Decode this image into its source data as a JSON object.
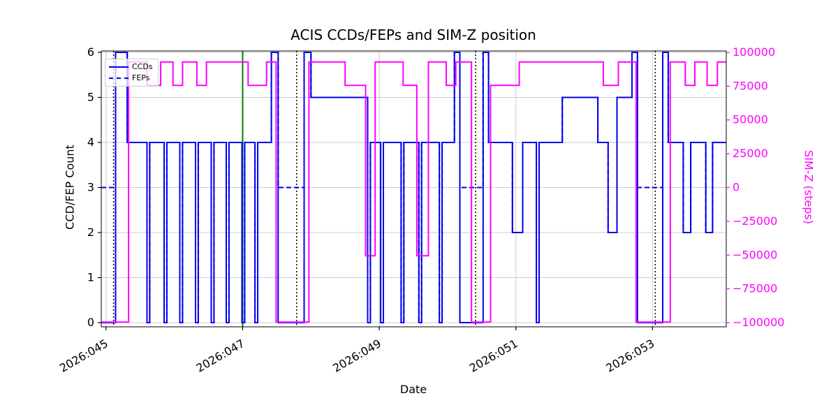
{
  "title": "ACIS CCDs/FEPs and SIM-Z position",
  "xlabel": "Date",
  "ylabel_left": "CCD/FEP Count",
  "ylabel_right": "SIM-Z (steps)",
  "legend": {
    "ccds": "CCDs",
    "feps": "FEPs"
  },
  "colors": {
    "ccds": "#0000ee",
    "feps": "#0000ee",
    "simz": "#ff00ff",
    "green_vline": "#008000",
    "dotted_vline": "#000000",
    "grid": "#cccccc",
    "axis": "#000000"
  },
  "chart_data": {
    "type": "line",
    "subtype": "step-post",
    "title": "ACIS CCDs/FEPs and SIM-Z position",
    "xlabel": "Date",
    "ylabel_left": "CCD/FEP Count",
    "ylabel_right": "SIM-Z (steps)",
    "x_unit": "2026 day-of-year",
    "grid": true,
    "legend_position": "upper-left",
    "xlim": [
      44.93,
      54.08
    ],
    "ylim_left": [
      -0.093,
      6.031
    ],
    "ylim_right": [
      -103100,
      101033
    ],
    "xticks": [
      {
        "v": 45,
        "label": "2026:045"
      },
      {
        "v": 47,
        "label": "2026:047"
      },
      {
        "v": 49,
        "label": "2026:049"
      },
      {
        "v": 51,
        "label": "2026:051"
      },
      {
        "v": 53,
        "label": "2026:053"
      }
    ],
    "yticks_left": [
      {
        "v": 0,
        "label": "0"
      },
      {
        "v": 1,
        "label": "1"
      },
      {
        "v": 2,
        "label": "2"
      },
      {
        "v": 3,
        "label": "3"
      },
      {
        "v": 4,
        "label": "4"
      },
      {
        "v": 5,
        "label": "5"
      },
      {
        "v": 6,
        "label": "6"
      }
    ],
    "yticks_right": [
      {
        "v": 100000,
        "label": "100000"
      },
      {
        "v": 75000,
        "label": "75000"
      },
      {
        "v": 50000,
        "label": "50000"
      },
      {
        "v": 25000,
        "label": "25000"
      },
      {
        "v": 0,
        "label": "0"
      },
      {
        "v": -25000,
        "label": "−25000"
      },
      {
        "v": -50000,
        "label": "−50000"
      },
      {
        "v": -75000,
        "label": "−75000"
      },
      {
        "v": -100000,
        "label": "−100000"
      }
    ],
    "vlines_dotted": [
      45.11,
      47.79,
      50.41,
      53.04
    ],
    "vline_green": 47.0,
    "series": [
      {
        "name": "CCDs",
        "axis": "left",
        "style": "solid",
        "color": "#0000ee",
        "points": [
          [
            44.93,
            0
          ],
          [
            45.14,
            6
          ],
          [
            45.31,
            4
          ],
          [
            45.6,
            0
          ],
          [
            45.64,
            4
          ],
          [
            45.85,
            0
          ],
          [
            45.89,
            4
          ],
          [
            46.08,
            0
          ],
          [
            46.12,
            4
          ],
          [
            46.31,
            0
          ],
          [
            46.35,
            4
          ],
          [
            46.54,
            0
          ],
          [
            46.58,
            4
          ],
          [
            46.76,
            0
          ],
          [
            46.8,
            4
          ],
          [
            46.99,
            0
          ],
          [
            47.03,
            4
          ],
          [
            47.18,
            0
          ],
          [
            47.22,
            4
          ],
          [
            47.42,
            6
          ],
          [
            47.52,
            0
          ],
          [
            47.9,
            6
          ],
          [
            48.0,
            5
          ],
          [
            48.83,
            0
          ],
          [
            48.87,
            4
          ],
          [
            49.02,
            0
          ],
          [
            49.06,
            4
          ],
          [
            49.32,
            0
          ],
          [
            49.36,
            4
          ],
          [
            49.58,
            0
          ],
          [
            49.62,
            4
          ],
          [
            49.88,
            0
          ],
          [
            49.92,
            4
          ],
          [
            50.1,
            6
          ],
          [
            50.18,
            0
          ],
          [
            50.52,
            6
          ],
          [
            50.6,
            4
          ],
          [
            50.95,
            2
          ],
          [
            51.1,
            4
          ],
          [
            51.3,
            0
          ],
          [
            51.34,
            4
          ],
          [
            51.68,
            5
          ],
          [
            52.2,
            4
          ],
          [
            52.35,
            2
          ],
          [
            52.48,
            5
          ],
          [
            52.7,
            6
          ],
          [
            52.78,
            0
          ],
          [
            53.15,
            6
          ],
          [
            53.23,
            4
          ],
          [
            53.45,
            2
          ],
          [
            53.56,
            4
          ],
          [
            53.78,
            2
          ],
          [
            53.88,
            4
          ],
          [
            54.08,
            4
          ]
        ]
      },
      {
        "name": "FEPs",
        "axis": "left",
        "style": "dashed",
        "color": "#0000ee",
        "points": [
          [
            44.93,
            3
          ],
          [
            45.14,
            6
          ],
          [
            45.31,
            4
          ],
          [
            45.6,
            0
          ],
          [
            45.64,
            4
          ],
          [
            45.85,
            0
          ],
          [
            45.89,
            4
          ],
          [
            46.08,
            0
          ],
          [
            46.12,
            4
          ],
          [
            46.31,
            0
          ],
          [
            46.35,
            4
          ],
          [
            46.54,
            0
          ],
          [
            46.58,
            4
          ],
          [
            46.76,
            0
          ],
          [
            46.8,
            4
          ],
          [
            46.99,
            0
          ],
          [
            47.03,
            4
          ],
          [
            47.18,
            0
          ],
          [
            47.22,
            4
          ],
          [
            47.42,
            6
          ],
          [
            47.52,
            3
          ],
          [
            47.9,
            6
          ],
          [
            48.0,
            5
          ],
          [
            48.83,
            0
          ],
          [
            48.87,
            4
          ],
          [
            49.02,
            0
          ],
          [
            49.06,
            4
          ],
          [
            49.32,
            0
          ],
          [
            49.36,
            4
          ],
          [
            49.58,
            0
          ],
          [
            49.62,
            4
          ],
          [
            49.88,
            0
          ],
          [
            49.92,
            4
          ],
          [
            50.1,
            6
          ],
          [
            50.18,
            3
          ],
          [
            50.52,
            6
          ],
          [
            50.6,
            4
          ],
          [
            50.95,
            2
          ],
          [
            51.1,
            4
          ],
          [
            51.3,
            0
          ],
          [
            51.34,
            4
          ],
          [
            51.68,
            5
          ],
          [
            52.2,
            4
          ],
          [
            52.35,
            2
          ],
          [
            52.48,
            5
          ],
          [
            52.7,
            6
          ],
          [
            52.78,
            3
          ],
          [
            53.15,
            6
          ],
          [
            53.23,
            4
          ],
          [
            53.45,
            2
          ],
          [
            53.56,
            4
          ],
          [
            53.78,
            2
          ],
          [
            53.88,
            4
          ],
          [
            54.08,
            4
          ]
        ]
      },
      {
        "name": "SIM-Z",
        "axis": "right",
        "style": "solid",
        "color": "#ff00ff",
        "points": [
          [
            44.93,
            -99612
          ],
          [
            45.33,
            92904
          ],
          [
            45.6,
            75624
          ],
          [
            45.8,
            92904
          ],
          [
            45.98,
            75624
          ],
          [
            46.12,
            92904
          ],
          [
            46.33,
            75624
          ],
          [
            46.47,
            92904
          ],
          [
            47.08,
            75624
          ],
          [
            47.35,
            92904
          ],
          [
            47.49,
            -99612
          ],
          [
            47.97,
            92904
          ],
          [
            48.5,
            75624
          ],
          [
            48.8,
            -50505
          ],
          [
            48.94,
            92904
          ],
          [
            49.35,
            75624
          ],
          [
            49.55,
            -50505
          ],
          [
            49.72,
            92904
          ],
          [
            49.98,
            75624
          ],
          [
            50.12,
            92904
          ],
          [
            50.35,
            -99612
          ],
          [
            50.63,
            75624
          ],
          [
            51.05,
            92904
          ],
          [
            52.28,
            75624
          ],
          [
            52.5,
            92904
          ],
          [
            52.76,
            -99612
          ],
          [
            53.26,
            92904
          ],
          [
            53.48,
            75624
          ],
          [
            53.62,
            92904
          ],
          [
            53.8,
            75624
          ],
          [
            53.95,
            92904
          ],
          [
            54.08,
            92904
          ]
        ]
      }
    ]
  }
}
